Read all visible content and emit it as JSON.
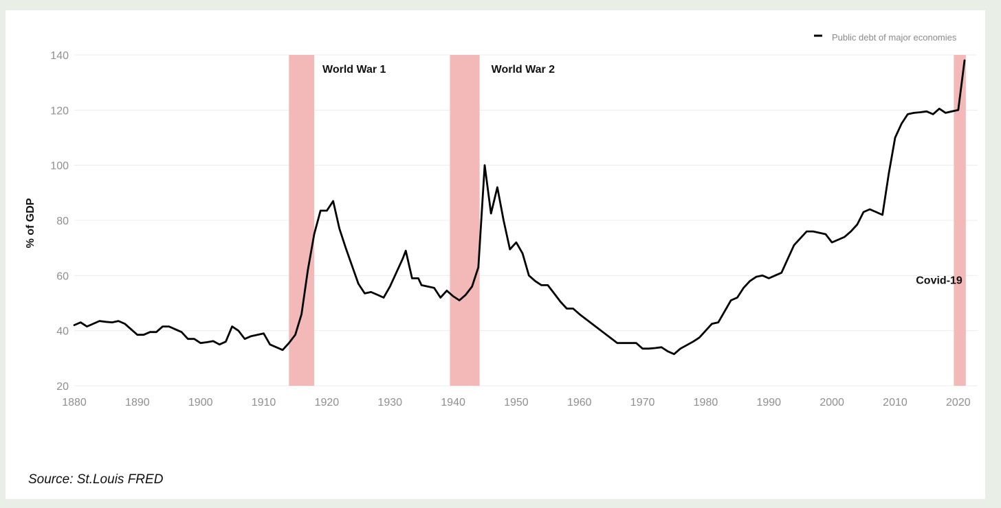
{
  "chart_data": {
    "type": "line",
    "title": "",
    "xlabel": "",
    "ylabel": "% of GDP",
    "xlim": [
      1880,
      2021
    ],
    "ylim": [
      20,
      140
    ],
    "x_ticks": [
      1880,
      1890,
      1900,
      1910,
      1920,
      1930,
      1940,
      1950,
      1960,
      1970,
      1980,
      1990,
      2000,
      2010,
      2020
    ],
    "y_ticks": [
      20,
      40,
      60,
      80,
      100,
      120,
      140
    ],
    "grid": true,
    "legend": {
      "position": "top-right",
      "label": "Public debt of major economies"
    },
    "series": [
      {
        "name": "Public debt of major economies",
        "color": "#000000",
        "points": [
          [
            1880,
            42
          ],
          [
            1881,
            43
          ],
          [
            1882,
            41.5
          ],
          [
            1883,
            42.5
          ],
          [
            1884,
            43.5
          ],
          [
            1885,
            43.2
          ],
          [
            1886,
            43
          ],
          [
            1887,
            43.5
          ],
          [
            1888,
            42.5
          ],
          [
            1889,
            40.5
          ],
          [
            1890,
            38.5
          ],
          [
            1891,
            38.5
          ],
          [
            1892,
            39.5
          ],
          [
            1893,
            39.5
          ],
          [
            1894,
            41.5
          ],
          [
            1895,
            41.5
          ],
          [
            1896,
            40.5
          ],
          [
            1897,
            39.5
          ],
          [
            1898,
            37
          ],
          [
            1899,
            37
          ],
          [
            1900,
            35.5
          ],
          [
            1901,
            35.8
          ],
          [
            1902,
            36.2
          ],
          [
            1903,
            35
          ],
          [
            1904,
            36
          ],
          [
            1905,
            41.5
          ],
          [
            1906,
            40
          ],
          [
            1907,
            37
          ],
          [
            1908,
            38
          ],
          [
            1909,
            38.5
          ],
          [
            1910,
            39
          ],
          [
            1911,
            35
          ],
          [
            1912,
            34
          ],
          [
            1913,
            33
          ],
          [
            1914,
            35.5
          ],
          [
            1915,
            38.5
          ],
          [
            1916,
            46
          ],
          [
            1917,
            62
          ],
          [
            1918,
            75
          ],
          [
            1919,
            83.5
          ],
          [
            1920,
            83.5
          ],
          [
            1921,
            87
          ],
          [
            1922,
            77
          ],
          [
            1923,
            70
          ],
          [
            1924,
            63.5
          ],
          [
            1925,
            57
          ],
          [
            1926,
            53.5
          ],
          [
            1927,
            54
          ],
          [
            1928,
            53
          ],
          [
            1929,
            52
          ],
          [
            1930,
            56
          ],
          [
            1931,
            61
          ],
          [
            1932,
            66
          ],
          [
            1932.5,
            69
          ],
          [
            1933.5,
            59
          ],
          [
            1934.5,
            59
          ],
          [
            1935,
            56.5
          ],
          [
            1936,
            56
          ],
          [
            1937,
            55.5
          ],
          [
            1938,
            52
          ],
          [
            1939,
            54.5
          ],
          [
            1940,
            52.5
          ],
          [
            1941,
            51
          ],
          [
            1942,
            53
          ],
          [
            1943,
            56
          ],
          [
            1944,
            63
          ],
          [
            1945,
            100
          ],
          [
            1946,
            82.5
          ],
          [
            1947,
            92
          ],
          [
            1948,
            80
          ],
          [
            1949,
            69.5
          ],
          [
            1950,
            72
          ],
          [
            1951,
            68
          ],
          [
            1952,
            60
          ],
          [
            1953,
            58
          ],
          [
            1954,
            56.5
          ],
          [
            1955,
            56.5
          ],
          [
            1956,
            53.5
          ],
          [
            1957,
            50.5
          ],
          [
            1958,
            48
          ],
          [
            1959,
            48
          ],
          [
            1960,
            46
          ],
          [
            1962,
            42.5
          ],
          [
            1964,
            39
          ],
          [
            1966,
            35.5
          ],
          [
            1967,
            35.5
          ],
          [
            1968,
            35.5
          ],
          [
            1969,
            35.5
          ],
          [
            1970,
            33.5
          ],
          [
            1971,
            33.5
          ],
          [
            1972,
            33.7
          ],
          [
            1973,
            34
          ],
          [
            1974,
            32.5
          ],
          [
            1975,
            31.5
          ],
          [
            1976,
            33.5
          ],
          [
            1978,
            36
          ],
          [
            1979,
            37.5
          ],
          [
            1980,
            40
          ],
          [
            1981,
            42.5
          ],
          [
            1982,
            43
          ],
          [
            1983,
            47
          ],
          [
            1984,
            51
          ],
          [
            1985,
            52
          ],
          [
            1986,
            55.5
          ],
          [
            1987,
            58
          ],
          [
            1988,
            59.5
          ],
          [
            1989,
            60
          ],
          [
            1990,
            59
          ],
          [
            1991,
            60
          ],
          [
            1992,
            61
          ],
          [
            1993,
            66
          ],
          [
            1994,
            71
          ],
          [
            1995,
            73.5
          ],
          [
            1996,
            76
          ],
          [
            1997,
            76
          ],
          [
            1998,
            75.5
          ],
          [
            1999,
            75
          ],
          [
            2000,
            72
          ],
          [
            2001,
            73
          ],
          [
            2002,
            74
          ],
          [
            2003,
            76
          ],
          [
            2004,
            78.5
          ],
          [
            2005,
            83
          ],
          [
            2006,
            84
          ],
          [
            2007,
            83
          ],
          [
            2008,
            82
          ],
          [
            2009,
            97
          ],
          [
            2010,
            110
          ],
          [
            2011,
            115
          ],
          [
            2012,
            118.5
          ],
          [
            2013,
            119
          ],
          [
            2014,
            119.2
          ],
          [
            2015,
            119.5
          ],
          [
            2016,
            118.5
          ],
          [
            2017,
            120.5
          ],
          [
            2018,
            119
          ],
          [
            2019,
            119.5
          ],
          [
            2020,
            120
          ],
          [
            2021,
            138
          ]
        ]
      }
    ],
    "shaded_periods": [
      {
        "label": "World War 1",
        "start": 1914,
        "end": 1918,
        "color": "#f3b9b9"
      },
      {
        "label": "World War 2",
        "start": 1939.5,
        "end": 1944.2,
        "color": "#f3b9b9"
      },
      {
        "label": "Covid-19",
        "start": 2019.3,
        "end": 2021.2,
        "color": "#f3b9b9"
      }
    ]
  },
  "source": "Source: St.Louis FRED"
}
